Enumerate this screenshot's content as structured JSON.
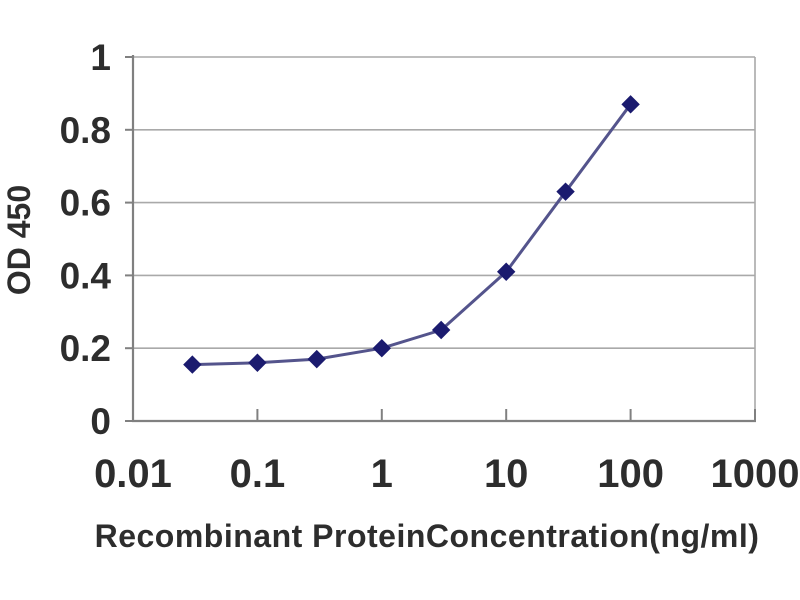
{
  "chart_data": {
    "type": "line",
    "title": "",
    "xlabel": "Recombinant ProteinConcentration(ng/ml)",
    "ylabel": "OD 450",
    "x_scale": "log",
    "x": [
      0.03,
      0.1,
      0.3,
      1,
      3,
      10,
      30,
      100
    ],
    "y": [
      0.155,
      0.16,
      0.17,
      0.2,
      0.25,
      0.41,
      0.63,
      0.87
    ],
    "xlim": [
      0.01,
      1000
    ],
    "ylim": [
      0,
      1
    ],
    "x_tick_labels": [
      "0.01",
      "0.1",
      "1",
      "10",
      "100",
      "1000"
    ],
    "y_tick_labels": [
      "0",
      "0.2",
      "0.4",
      "0.6",
      "0.8",
      "1"
    ],
    "grid": "horizontal",
    "legend": false,
    "marker": "diamond",
    "colors": {
      "line": "#54548c",
      "marker": "#1b1b6f",
      "axis": "#808080",
      "grid": "#a9a9a9",
      "text": "#2d2d2d",
      "background": "#ffffff"
    }
  }
}
